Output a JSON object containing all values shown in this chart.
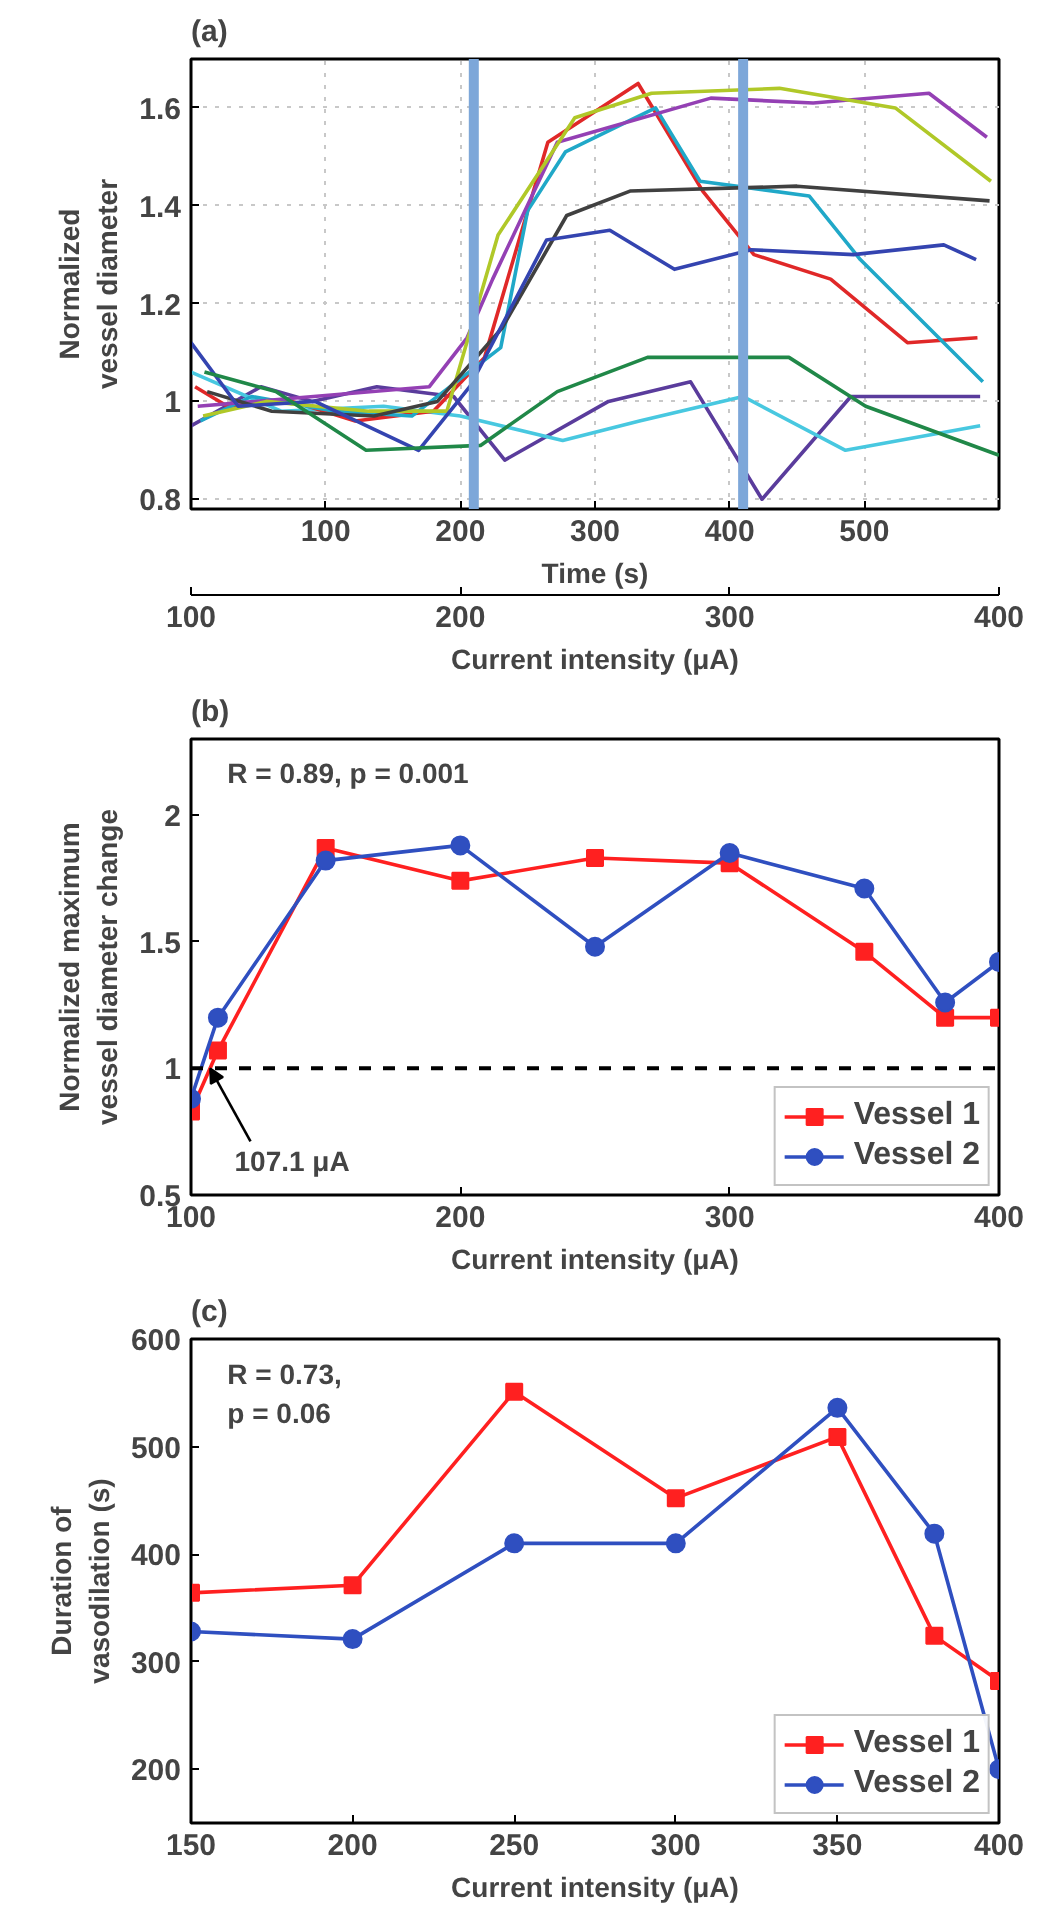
{
  "chart_data": [
    {
      "type": "line",
      "title": "(a)",
      "ylabel": "Normalized vessel diameter",
      "xlabel": "Time (s)",
      "x2label": "Current intensity (μA)",
      "x2lim": [
        100,
        400
      ],
      "x2ticks": [
        100,
        200,
        300,
        400
      ],
      "xlim": [
        0,
        600
      ],
      "xticks": [
        100,
        200,
        300,
        400,
        500
      ],
      "ylim": [
        0.78,
        1.7
      ],
      "yticks": [
        0.8,
        1,
        1.2,
        1.4,
        1.6
      ],
      "grid": true,
      "marker": "none",
      "ref_lines": [
        {
          "axis": "x",
          "value": 210,
          "color": "#7da7d9"
        },
        {
          "axis": "x",
          "value": 410,
          "color": "#7da7d9"
        }
      ],
      "series": [
        {
          "color": "#5a3c9c",
          "x": [
            0,
            52,
            90,
            138,
            195,
            233,
            310,
            371,
            424,
            490,
            586
          ],
          "values": [
            0.95,
            1.03,
            1.0,
            1.03,
            1.01,
            0.88,
            1.0,
            1.04,
            0.8,
            1.01,
            1.01
          ]
        },
        {
          "color": "#48c8e0",
          "x": [
            0,
            67,
            143,
            200,
            276,
            333,
            410,
            486,
            586
          ],
          "values": [
            1.06,
            0.98,
            0.99,
            0.97,
            0.92,
            0.96,
            1.01,
            0.9,
            0.95
          ]
        },
        {
          "color": "#e02828",
          "x": [
            3,
            27,
            75,
            122,
            180,
            218,
            265,
            332,
            380,
            418,
            475,
            532,
            584
          ],
          "values": [
            1.03,
            0.99,
            1.0,
            0.96,
            0.98,
            1.09,
            1.53,
            1.65,
            1.43,
            1.3,
            1.25,
            1.12,
            1.13
          ]
        },
        {
          "color": "#20a8c8",
          "x": [
            7,
            45,
            107,
            164,
            230,
            250,
            278,
            345,
            378,
            459,
            497,
            588
          ],
          "values": [
            0.96,
            1.01,
            0.98,
            0.97,
            1.11,
            1.39,
            1.51,
            1.6,
            1.45,
            1.42,
            1.29,
            1.04
          ]
        },
        {
          "color": "#9440b4",
          "x": [
            5,
            91,
            177,
            205,
            224,
            272,
            386,
            462,
            548,
            591
          ],
          "values": [
            0.99,
            1.01,
            1.03,
            1.13,
            1.25,
            1.53,
            1.62,
            1.61,
            1.63,
            1.54
          ]
        },
        {
          "color": "#b0c828",
          "x": [
            9,
            56,
            132,
            190,
            228,
            285,
            342,
            437,
            523,
            594
          ],
          "values": [
            0.97,
            1.0,
            0.98,
            0.98,
            1.34,
            1.58,
            1.63,
            1.64,
            1.6,
            1.45
          ]
        },
        {
          "color": "#404040",
          "x": [
            12,
            60,
            136,
            183,
            231,
            279,
            326,
            450,
            593
          ],
          "values": [
            1.02,
            0.98,
            0.97,
            1.0,
            1.15,
            1.38,
            1.43,
            1.44,
            1.41
          ]
        },
        {
          "color": "#3444b0",
          "x": [
            0,
            35,
            92,
            169,
            207,
            264,
            311,
            359,
            416,
            492,
            559,
            583
          ],
          "values": [
            1.12,
            0.99,
            1.0,
            0.9,
            1.03,
            1.33,
            1.35,
            1.27,
            1.31,
            1.3,
            1.32,
            1.29
          ]
        },
        {
          "color": "#208848",
          "x": [
            10,
            63,
            130,
            215,
            272,
            339,
            444,
            501,
            600
          ],
          "values": [
            1.06,
            1.02,
            0.9,
            0.91,
            1.02,
            1.09,
            1.09,
            0.99,
            0.89
          ]
        }
      ]
    },
    {
      "type": "line",
      "title": "(b)",
      "ylabel": "Normalized maximum vessel diameter change",
      "xlabel": "Current intensity (μA)",
      "x": [
        100,
        110,
        150,
        200,
        250,
        300,
        350,
        380,
        400
      ],
      "xlim": [
        100,
        400
      ],
      "xticks": [
        100,
        200,
        300,
        400
      ],
      "ylim": [
        0.5,
        2.3
      ],
      "yticks": [
        0.5,
        1,
        1.5,
        2
      ],
      "legend": "bottom right",
      "series": [
        {
          "name": "Vessel 1",
          "color": "#ff2020",
          "marker": "square",
          "values": [
            0.83,
            1.07,
            1.87,
            1.74,
            1.83,
            1.81,
            1.46,
            1.2,
            1.2
          ]
        },
        {
          "name": "Vessel 2",
          "color": "#2f4fc0",
          "marker": "circle",
          "values": [
            0.88,
            1.2,
            1.82,
            1.88,
            1.48,
            1.85,
            1.71,
            1.26,
            1.42
          ]
        }
      ],
      "ref_lines": [
        {
          "axis": "y",
          "value": 1,
          "color": "#000000",
          "line_style": "dashed"
        }
      ],
      "annotations": [
        "R = 0.89, p = 0.001",
        {
          "text": "107.1 μA",
          "x": 107.1,
          "y": 1
        }
      ]
    },
    {
      "type": "line",
      "title": "(c)",
      "ylabel": "Duration of vasodilation (s)",
      "xlabel": "Current intensity (μA)",
      "x": [
        150,
        200,
        250,
        300,
        350,
        380,
        400
      ],
      "xlim": [
        150,
        400
      ],
      "xticks": [
        150,
        200,
        250,
        300,
        350,
        400
      ],
      "ylim": [
        150,
        600
      ],
      "yticks": [
        200,
        300,
        400,
        500,
        600
      ],
      "legend": "bottom right",
      "series": [
        {
          "name": "Vessel 1",
          "color": "#ff2020",
          "marker": "square",
          "values": [
            364,
            371,
            551,
            452,
            509,
            324,
            282
          ]
        },
        {
          "name": "Vessel 2",
          "color": "#2f4fc0",
          "marker": "circle",
          "values": [
            328,
            321,
            410,
            410,
            536,
            419,
            200
          ]
        }
      ],
      "annotations": [
        "R = 0.73,\np = 0.06"
      ]
    }
  ]
}
